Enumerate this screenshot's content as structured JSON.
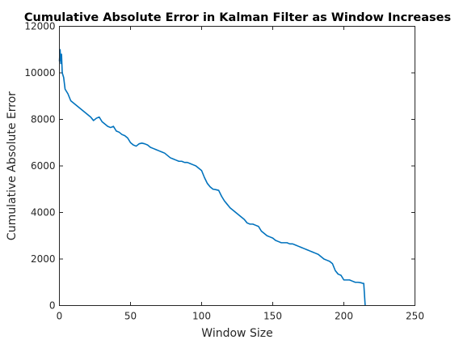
{
  "chart_data": {
    "type": "line",
    "title": "Cumulative Absolute Error in Kalman Filter as Window Increases",
    "xlabel": "Window Size",
    "ylabel": "Cumulative Absolute Error",
    "xlim": [
      0,
      250
    ],
    "ylim": [
      0,
      12000
    ],
    "xticks": [
      0,
      50,
      100,
      150,
      200,
      250
    ],
    "yticks": [
      0,
      2000,
      4000,
      6000,
      8000,
      10000,
      12000
    ],
    "xtick_labels": [
      "0",
      "50",
      "100",
      "150",
      "200",
      "250"
    ],
    "ytick_labels": [
      "0",
      "2000",
      "4000",
      "6000",
      "8000",
      "10000",
      "12000"
    ],
    "grid": false,
    "series_color": "#0072bd",
    "series": [
      {
        "x": [
          0,
          0.5,
          1,
          1.5,
          2,
          3,
          4,
          5,
          6,
          8,
          10,
          12,
          14,
          16,
          18,
          20,
          22,
          24,
          26,
          28,
          30,
          32,
          34,
          36,
          38,
          40,
          42,
          44,
          46,
          48,
          50,
          52,
          54,
          56,
          58,
          60,
          62,
          64,
          66,
          68,
          70,
          72,
          74,
          76,
          78,
          80,
          82,
          84,
          86,
          88,
          90,
          92,
          94,
          96,
          98,
          100,
          102,
          104,
          106,
          108,
          110,
          112,
          114,
          116,
          118,
          120,
          122,
          124,
          126,
          128,
          130,
          132,
          134,
          136,
          138,
          140,
          142,
          144,
          146,
          148,
          150,
          152,
          154,
          156,
          158,
          160,
          162,
          164,
          166,
          168,
          170,
          172,
          174,
          176,
          178,
          180,
          182,
          184,
          186,
          188,
          190,
          192,
          194,
          196,
          198,
          200,
          202,
          204,
          206,
          208,
          210,
          212,
          213,
          214,
          215
        ],
        "y": [
          10500,
          11000,
          10400,
          10800,
          10000,
          9800,
          9300,
          9200,
          9100,
          8800,
          8700,
          8600,
          8500,
          8400,
          8300,
          8200,
          8100,
          7950,
          8050,
          8100,
          7900,
          7800,
          7700,
          7650,
          7700,
          7500,
          7450,
          7350,
          7300,
          7200,
          7000,
          6900,
          6850,
          6950,
          6980,
          6950,
          6900,
          6800,
          6750,
          6700,
          6650,
          6600,
          6550,
          6450,
          6350,
          6300,
          6250,
          6200,
          6200,
          6150,
          6150,
          6100,
          6050,
          6000,
          5900,
          5800,
          5500,
          5250,
          5100,
          5000,
          4980,
          4950,
          4700,
          4500,
          4350,
          4200,
          4100,
          4000,
          3900,
          3800,
          3700,
          3550,
          3500,
          3500,
          3450,
          3400,
          3200,
          3100,
          3000,
          2950,
          2900,
          2800,
          2750,
          2700,
          2700,
          2700,
          2650,
          2650,
          2600,
          2550,
          2500,
          2450,
          2400,
          2350,
          2300,
          2250,
          2200,
          2100,
          2000,
          1950,
          1900,
          1800,
          1500,
          1350,
          1300,
          1100,
          1100,
          1100,
          1050,
          1000,
          1000,
          980,
          960,
          950,
          0
        ]
      }
    ]
  }
}
